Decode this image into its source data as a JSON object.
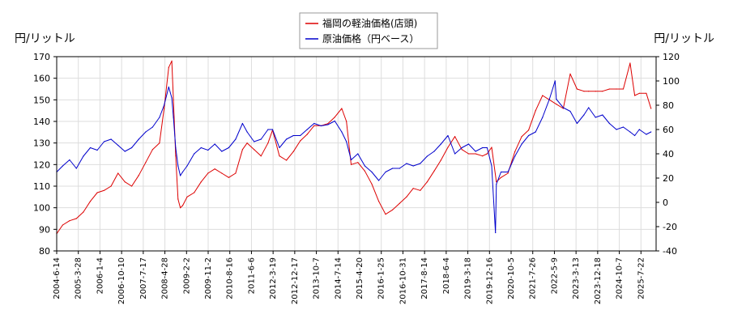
{
  "chart_data": {
    "type": "line",
    "ylabel_left": "円/リットル",
    "ylabel_right": "円/リットル",
    "legend_position": "top-center",
    "grid": true,
    "ylim_left": [
      80,
      170
    ],
    "ylim_right": [
      -40,
      120
    ],
    "y_ticks_left": [
      80,
      90,
      100,
      110,
      120,
      130,
      140,
      150,
      160,
      170
    ],
    "y_ticks_right": [
      -40,
      -20,
      0,
      20,
      40,
      60,
      80,
      100,
      120
    ],
    "x_ticks": [
      "2004-6-14",
      "2005-3-28",
      "2006-1-4",
      "2006-10-10",
      "2007-7-17",
      "2008-4-28",
      "2009-2-2",
      "2009-11-2",
      "2010-8-16",
      "2011-6-6",
      "2012-3-19",
      "2012-12-17",
      "2013-10-7",
      "2014-7-14",
      "2015-4-20",
      "2016-1-25",
      "2016-10-31",
      "2017-8-14",
      "2018-6-4",
      "2019-3-18",
      "2019-12-16",
      "2020-10-5",
      "2021-7-26",
      "2022-5-9",
      "2023-3-13",
      "2023-12-18",
      "2024-10-7",
      "2025-7-22"
    ],
    "series": [
      {
        "name": "福岡の軽油価格(店頭)",
        "axis": "left",
        "color": "#dd0000",
        "x": [
          "2004-6-14",
          "2004-9-1",
          "2004-12-1",
          "2005-3-1",
          "2005-6-1",
          "2005-9-1",
          "2005-12-1",
          "2006-3-1",
          "2006-6-1",
          "2006-9-1",
          "2006-12-1",
          "2007-3-1",
          "2007-6-1",
          "2007-9-1",
          "2007-12-1",
          "2008-3-1",
          "2008-5-1",
          "2008-7-1",
          "2008-8-10",
          "2008-9-1",
          "2008-10-1",
          "2008-11-1",
          "2008-12-1",
          "2009-1-1",
          "2009-3-1",
          "2009-6-1",
          "2009-9-1",
          "2009-12-1",
          "2010-3-1",
          "2010-6-1",
          "2010-9-1",
          "2010-12-1",
          "2011-3-1",
          "2011-5-1",
          "2011-8-1",
          "2011-11-1",
          "2012-2-1",
          "2012-4-1",
          "2012-7-1",
          "2012-10-1",
          "2013-1-1",
          "2013-4-1",
          "2013-7-1",
          "2013-10-1",
          "2014-1-1",
          "2014-4-1",
          "2014-7-1",
          "2014-10-1",
          "2014-12-1",
          "2015-2-1",
          "2015-5-1",
          "2015-8-1",
          "2015-11-1",
          "2016-2-1",
          "2016-5-1",
          "2016-8-1",
          "2016-11-1",
          "2017-2-1",
          "2017-5-1",
          "2017-8-1",
          "2017-11-1",
          "2018-2-1",
          "2018-5-1",
          "2018-8-1",
          "2018-11-1",
          "2019-2-1",
          "2019-5-1",
          "2019-8-1",
          "2019-11-1",
          "2020-1-1",
          "2020-3-1",
          "2020-5-1",
          "2020-7-1",
          "2020-10-1",
          "2021-1-1",
          "2021-4-1",
          "2021-7-1",
          "2021-10-1",
          "2022-1-1",
          "2022-4-1",
          "2022-7-1",
          "2022-10-1",
          "2023-1-1",
          "2023-4-1",
          "2023-7-1",
          "2023-9-1",
          "2023-12-1",
          "2024-3-1",
          "2024-6-1",
          "2024-9-1",
          "2024-12-1",
          "2025-3-1",
          "2025-5-1",
          "2025-7-1",
          "2025-10-1",
          "2025-12-1"
        ],
        "values": [
          88,
          92,
          94,
          95,
          98,
          103,
          107,
          108,
          110,
          116,
          112,
          110,
          115,
          121,
          127,
          130,
          146,
          165,
          168,
          150,
          124,
          104,
          100,
          101,
          105,
          107,
          112,
          116,
          118,
          116,
          114,
          116,
          127,
          130,
          127,
          124,
          130,
          136,
          124,
          122,
          126,
          131,
          134,
          138,
          138,
          139,
          142,
          146,
          140,
          120,
          121,
          117,
          111,
          103,
          97,
          99,
          102,
          105,
          109,
          108,
          112,
          117,
          122,
          128,
          133,
          127,
          125,
          125,
          124,
          125,
          128,
          112,
          114,
          116,
          126,
          133,
          136,
          145,
          152,
          150,
          148,
          146,
          162,
          155,
          154,
          154,
          154,
          154,
          155,
          155,
          155,
          167,
          152,
          153,
          153,
          146
        ]
      },
      {
        "name": "原油価格（円ベース）",
        "axis": "right",
        "color": "#0000cc",
        "x": [
          "2004-6-14",
          "2004-9-1",
          "2004-12-1",
          "2005-3-1",
          "2005-6-1",
          "2005-9-1",
          "2005-12-1",
          "2006-3-1",
          "2006-6-1",
          "2006-9-1",
          "2006-12-1",
          "2007-3-1",
          "2007-6-1",
          "2007-9-1",
          "2007-12-1",
          "2008-3-1",
          "2008-5-1",
          "2008-7-1",
          "2008-8-10",
          "2008-9-1",
          "2008-10-1",
          "2008-11-1",
          "2008-12-1",
          "2009-1-1",
          "2009-3-1",
          "2009-6-1",
          "2009-9-1",
          "2009-12-1",
          "2010-3-1",
          "2010-6-1",
          "2010-9-1",
          "2010-12-1",
          "2011-3-1",
          "2011-5-1",
          "2011-8-1",
          "2011-11-1",
          "2012-2-1",
          "2012-4-1",
          "2012-7-1",
          "2012-10-1",
          "2013-1-1",
          "2013-4-1",
          "2013-7-1",
          "2013-10-1",
          "2014-1-1",
          "2014-4-1",
          "2014-7-1",
          "2014-10-1",
          "2014-12-1",
          "2015-2-1",
          "2015-5-1",
          "2015-8-1",
          "2015-11-1",
          "2016-2-1",
          "2016-5-1",
          "2016-8-1",
          "2016-11-1",
          "2017-2-1",
          "2017-5-1",
          "2017-8-1",
          "2017-11-1",
          "2018-2-1",
          "2018-5-1",
          "2018-8-1",
          "2018-11-1",
          "2019-2-1",
          "2019-5-1",
          "2019-8-1",
          "2019-11-1",
          "2020-1-1",
          "2020-3-1",
          "2020-4-20",
          "2020-5-1",
          "2020-7-1",
          "2020-10-1",
          "2021-1-1",
          "2021-4-1",
          "2021-7-1",
          "2021-10-1",
          "2022-1-1",
          "2022-4-1",
          "2022-6-15",
          "2022-7-1",
          "2022-10-1",
          "2023-1-1",
          "2023-4-1",
          "2023-7-1",
          "2023-9-1",
          "2023-12-1",
          "2024-3-1",
          "2024-6-1",
          "2024-9-1",
          "2024-12-1",
          "2025-3-1",
          "2025-5-1",
          "2025-7-1",
          "2025-10-1",
          "2025-12-1"
        ],
        "values": [
          25,
          30,
          35,
          28,
          38,
          45,
          43,
          50,
          52,
          47,
          42,
          45,
          52,
          58,
          62,
          70,
          80,
          95,
          86,
          70,
          45,
          30,
          22,
          25,
          30,
          40,
          45,
          43,
          48,
          42,
          45,
          52,
          65,
          58,
          50,
          52,
          60,
          60,
          45,
          52,
          55,
          55,
          60,
          65,
          63,
          64,
          67,
          58,
          50,
          35,
          40,
          30,
          25,
          18,
          25,
          28,
          28,
          32,
          30,
          32,
          38,
          42,
          48,
          55,
          40,
          45,
          48,
          42,
          45,
          45,
          30,
          -25,
          15,
          25,
          25,
          38,
          48,
          55,
          58,
          70,
          85,
          100,
          85,
          78,
          75,
          65,
          72,
          78,
          70,
          72,
          65,
          60,
          62,
          58,
          55,
          60,
          56,
          58
        ]
      }
    ]
  }
}
